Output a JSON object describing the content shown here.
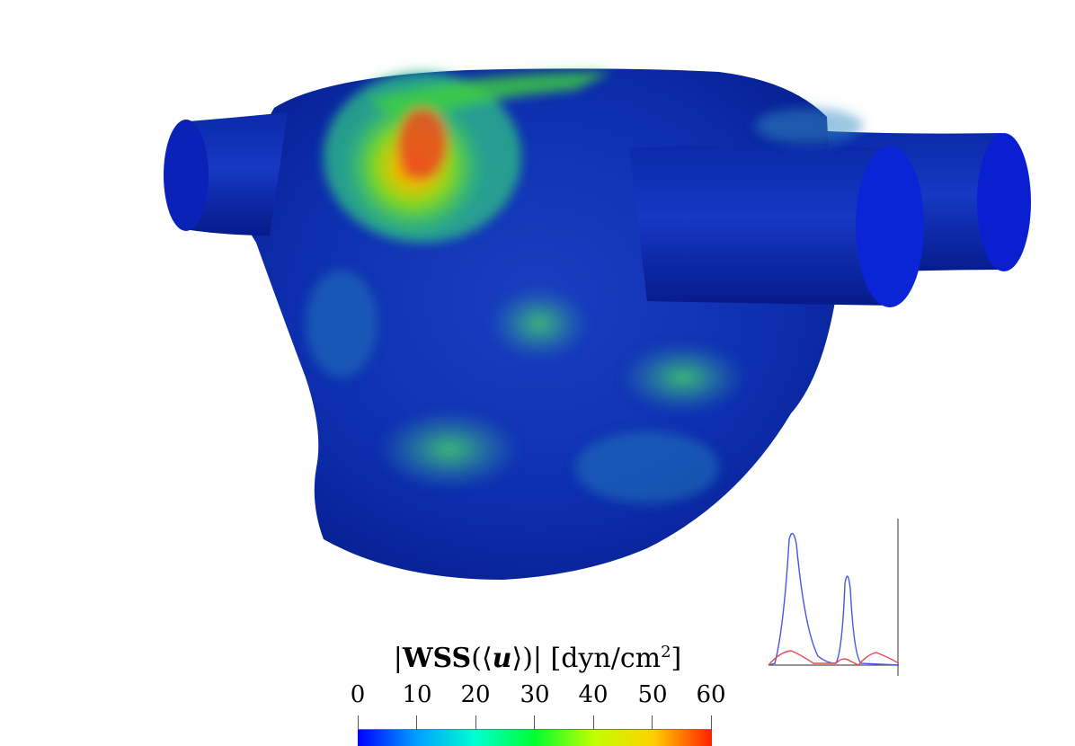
{
  "figure": {
    "colorbar": {
      "title_parts": {
        "open_bar": "|",
        "bold_label": "WSS",
        "open_paren": "(",
        "open_angle": "⟨",
        "vector": "u",
        "close_angle": "⟩",
        "close_paren": ")",
        "close_bar": "|",
        "unit_open": " [dyn/cm",
        "unit_sup": "2",
        "unit_close": "]"
      },
      "ticks": [
        "0",
        "10",
        "20",
        "30",
        "40",
        "50",
        "60"
      ],
      "range": [
        0,
        60
      ],
      "colormap": [
        "#0000ff",
        "#00a0ff",
        "#00ffd0",
        "#00ff30",
        "#c0ff00",
        "#ffd000",
        "#ff2000"
      ]
    },
    "inset_plot": {
      "series_colors": [
        "#4a55e8",
        "#e84a4a"
      ]
    }
  }
}
